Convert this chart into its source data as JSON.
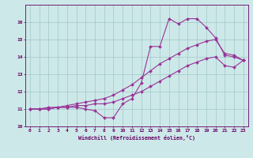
{
  "xlabel": "Windchill (Refroidissement éolien,°C)",
  "ylabel": "",
  "background_color": "#cde8e8",
  "grid_color": "#a0c8c8",
  "line_color": "#993399",
  "xlim": [
    -0.5,
    23.5
  ],
  "ylim": [
    10,
    17
  ],
  "yticks": [
    10,
    11,
    12,
    13,
    14,
    15,
    16
  ],
  "xticks": [
    0,
    1,
    2,
    3,
    4,
    5,
    6,
    7,
    8,
    9,
    10,
    11,
    12,
    13,
    14,
    15,
    16,
    17,
    18,
    19,
    20,
    21,
    22,
    23
  ],
  "series": [
    {
      "x": [
        0,
        1,
        2,
        3,
        4,
        5,
        6,
        7,
        8,
        9,
        10,
        11,
        12,
        13,
        14,
        15,
        16,
        17,
        18,
        19,
        20,
        21,
        22,
        23
      ],
      "y": [
        11.0,
        11.0,
        11.0,
        11.1,
        11.1,
        11.1,
        11.0,
        10.9,
        10.5,
        10.5,
        11.3,
        11.6,
        12.5,
        14.6,
        14.6,
        16.2,
        15.9,
        16.2,
        16.2,
        15.7,
        15.1,
        14.1,
        14.0,
        13.8
      ]
    },
    {
      "x": [
        0,
        1,
        2,
        3,
        4,
        5,
        6,
        7,
        8,
        9,
        10,
        11,
        12,
        13,
        14,
        15,
        16,
        17,
        18,
        19,
        20,
        21,
        22,
        23
      ],
      "y": [
        11.0,
        11.0,
        11.1,
        11.1,
        11.2,
        11.3,
        11.4,
        11.5,
        11.6,
        11.8,
        12.1,
        12.4,
        12.8,
        13.2,
        13.6,
        13.9,
        14.2,
        14.5,
        14.7,
        14.9,
        15.0,
        14.2,
        14.1,
        13.8
      ]
    },
    {
      "x": [
        0,
        1,
        2,
        3,
        4,
        5,
        6,
        7,
        8,
        9,
        10,
        11,
        12,
        13,
        14,
        15,
        16,
        17,
        18,
        19,
        20,
        21,
        22,
        23
      ],
      "y": [
        11.0,
        11.0,
        11.0,
        11.1,
        11.1,
        11.2,
        11.2,
        11.3,
        11.3,
        11.4,
        11.6,
        11.8,
        12.0,
        12.3,
        12.6,
        12.9,
        13.2,
        13.5,
        13.7,
        13.9,
        14.0,
        13.5,
        13.4,
        13.8
      ]
    }
  ]
}
